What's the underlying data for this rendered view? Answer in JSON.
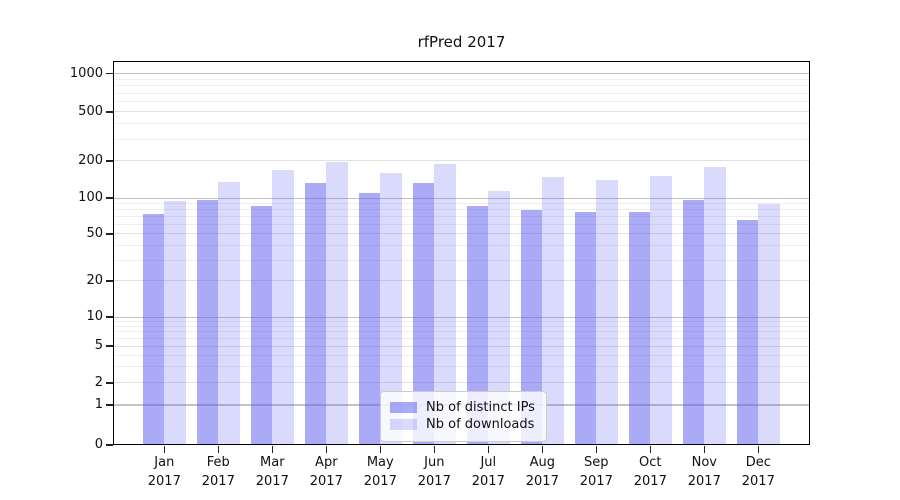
{
  "chart_data": {
    "type": "bar",
    "title": "rfPred 2017",
    "categories": [
      "Jan 2017",
      "Feb 2017",
      "Mar 2017",
      "Apr 2017",
      "May 2017",
      "Jun 2017",
      "Jul 2017",
      "Aug 2017",
      "Sep 2017",
      "Oct 2017",
      "Nov 2017",
      "Dec 2017"
    ],
    "x_tick_months": [
      "Jan",
      "Feb",
      "Mar",
      "Apr",
      "May",
      "Jun",
      "Jul",
      "Aug",
      "Sep",
      "Oct",
      "Nov",
      "Dec"
    ],
    "x_tick_year": "2017",
    "series": [
      {
        "name": "Nb of distinct IPs",
        "color": "rgba(85,85,240,0.5)",
        "values": [
          73,
          96,
          86,
          133,
          110,
          132,
          86,
          80,
          77,
          76,
          96,
          65
        ]
      },
      {
        "name": "Nb of downloads",
        "color": "rgba(85,85,240,0.22)",
        "values": [
          95,
          134,
          170,
          196,
          160,
          190,
          114,
          148,
          140,
          152,
          180,
          89
        ]
      }
    ],
    "xlabel": "",
    "ylabel": "",
    "yscale": "symlog",
    "yticks": [
      0,
      1,
      2,
      5,
      10,
      20,
      50,
      100,
      200,
      500,
      1000
    ],
    "ylim": [
      0,
      1250
    ],
    "grid": true,
    "legend_position": "lower center"
  },
  "colors": {
    "bar_dark": "rgba(85,85,240,0.5)",
    "bar_light": "rgba(85,85,240,0.22)",
    "grid_major": "#c3c3c3",
    "grid_mid": "#e0e0e0",
    "grid_minor": "#eeeeee",
    "frame": "#000000",
    "background": "#ffffff"
  }
}
